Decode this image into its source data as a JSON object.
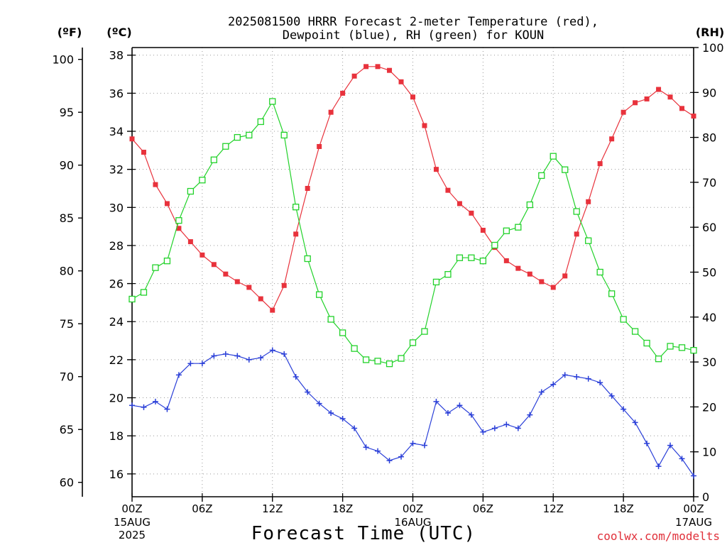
{
  "chart_data": {
    "type": "line",
    "title_line1": "2025081500 HRRR Forecast 2-meter Temperature (red),",
    "title_line2": "Dewpoint (blue), RH (green) for KOUN",
    "xlabel": "Forecast Time (UTC)",
    "credit": "coolwx.com/modelts",
    "units": {
      "fahrenheit": "(ºF)",
      "celsius": "(ºC)",
      "rh": "(RH)"
    },
    "x_ticks": [
      {
        "hour": 0,
        "l1": "00Z",
        "l2": "15AUG",
        "l3": "2025"
      },
      {
        "hour": 6,
        "l1": "06Z",
        "l2": "",
        "l3": ""
      },
      {
        "hour": 12,
        "l1": "12Z",
        "l2": "",
        "l3": ""
      },
      {
        "hour": 18,
        "l1": "18Z",
        "l2": "",
        "l3": ""
      },
      {
        "hour": 24,
        "l1": "00Z",
        "l2": "16AUG",
        "l3": ""
      },
      {
        "hour": 30,
        "l1": "06Z",
        "l2": "",
        "l3": ""
      },
      {
        "hour": 36,
        "l1": "12Z",
        "l2": "",
        "l3": ""
      },
      {
        "hour": 42,
        "l1": "18Z",
        "l2": "",
        "l3": ""
      },
      {
        "hour": 48,
        "l1": "00Z",
        "l2": "17AUG",
        "l3": ""
      }
    ],
    "xlim": [
      0,
      48
    ],
    "celsius_ylim": [
      14.8,
      38.4
    ],
    "celsius_ticks": [
      16,
      18,
      20,
      22,
      24,
      26,
      28,
      30,
      32,
      34,
      36,
      38
    ],
    "fahrenheit_ticks": [
      60,
      65,
      70,
      75,
      80,
      85,
      90,
      95,
      100
    ],
    "rh_ylim": [
      0,
      100
    ],
    "rh_ticks": [
      0,
      10,
      20,
      30,
      40,
      50,
      60,
      70,
      80,
      90,
      100
    ],
    "colors": {
      "temperature": "#e8323c",
      "dewpoint": "#2a3fd8",
      "rh": "#22d22a"
    },
    "series": [
      {
        "name": "Temperature",
        "marker": "filled-square",
        "axis": "celsius",
        "x": [
          0,
          1,
          2,
          3,
          4,
          5,
          6,
          7,
          8,
          9,
          10,
          11,
          12,
          13,
          14,
          15,
          16,
          17,
          18,
          19,
          20,
          21,
          22,
          23,
          24,
          25,
          26,
          27,
          28,
          29,
          30,
          31,
          32,
          33,
          34,
          35,
          36,
          37,
          38,
          39,
          40,
          41,
          42,
          43,
          44,
          45,
          46,
          47,
          48
        ],
        "values": [
          33.6,
          32.9,
          31.2,
          30.2,
          28.9,
          28.2,
          27.5,
          27.0,
          26.5,
          26.1,
          25.8,
          25.2,
          24.6,
          25.9,
          28.6,
          31.0,
          33.2,
          35.0,
          36.0,
          36.9,
          37.4,
          37.4,
          37.2,
          36.6,
          35.8,
          34.3,
          32.0,
          30.9,
          30.2,
          29.7,
          28.8,
          27.9,
          27.2,
          26.8,
          26.5,
          26.1,
          25.8,
          26.4,
          28.6,
          30.3,
          32.3,
          33.6,
          35.0,
          35.5,
          35.7,
          36.2,
          35.8,
          35.2,
          34.8
        ]
      },
      {
        "name": "Dewpoint",
        "marker": "plus",
        "axis": "celsius",
        "x": [
          0,
          1,
          2,
          3,
          4,
          5,
          6,
          7,
          8,
          9,
          10,
          11,
          12,
          13,
          14,
          15,
          16,
          17,
          18,
          19,
          20,
          21,
          22,
          23,
          24,
          25,
          26,
          27,
          28,
          29,
          30,
          31,
          32,
          33,
          34,
          35,
          36,
          37,
          38,
          39,
          40,
          41,
          42,
          43,
          44,
          45,
          46,
          47,
          48
        ],
        "values": [
          19.6,
          19.5,
          19.8,
          19.4,
          21.2,
          21.8,
          21.8,
          22.2,
          22.3,
          22.2,
          22.0,
          22.1,
          22.5,
          22.3,
          21.1,
          20.3,
          19.7,
          19.2,
          18.9,
          18.4,
          17.4,
          17.2,
          16.7,
          16.9,
          17.6,
          17.5,
          19.8,
          19.2,
          19.6,
          19.1,
          18.2,
          18.4,
          18.6,
          18.4,
          19.1,
          20.3,
          20.7,
          21.2,
          21.1,
          21.0,
          20.8,
          20.1,
          19.4,
          18.7,
          17.6,
          16.4,
          17.5,
          16.8,
          15.9
        ]
      },
      {
        "name": "RH",
        "marker": "open-square",
        "axis": "rh",
        "x": [
          0,
          1,
          2,
          3,
          4,
          5,
          6,
          7,
          8,
          9,
          10,
          11,
          12,
          13,
          14,
          15,
          16,
          17,
          18,
          19,
          20,
          21,
          22,
          23,
          24,
          25,
          26,
          27,
          28,
          29,
          30,
          31,
          32,
          33,
          34,
          35,
          36,
          37,
          38,
          39,
          40,
          41,
          42,
          43,
          44,
          45,
          46,
          47,
          48
        ],
        "values": [
          44,
          45.5,
          51,
          52.5,
          61.5,
          68,
          70.5,
          75,
          78,
          80,
          80.5,
          83.5,
          88,
          80.5,
          64.5,
          53,
          45,
          39.5,
          36.5,
          33,
          30.5,
          30.2,
          29.6,
          30.8,
          34.3,
          36.8,
          47.8,
          49.5,
          53.2,
          53.2,
          52.5,
          56,
          59.2,
          60,
          65,
          71.5,
          75.8,
          72.8,
          63.5,
          57,
          50,
          45.2,
          39.5,
          36.8,
          34.2,
          30.7,
          33.5,
          33.2,
          32.6
        ]
      }
    ]
  }
}
